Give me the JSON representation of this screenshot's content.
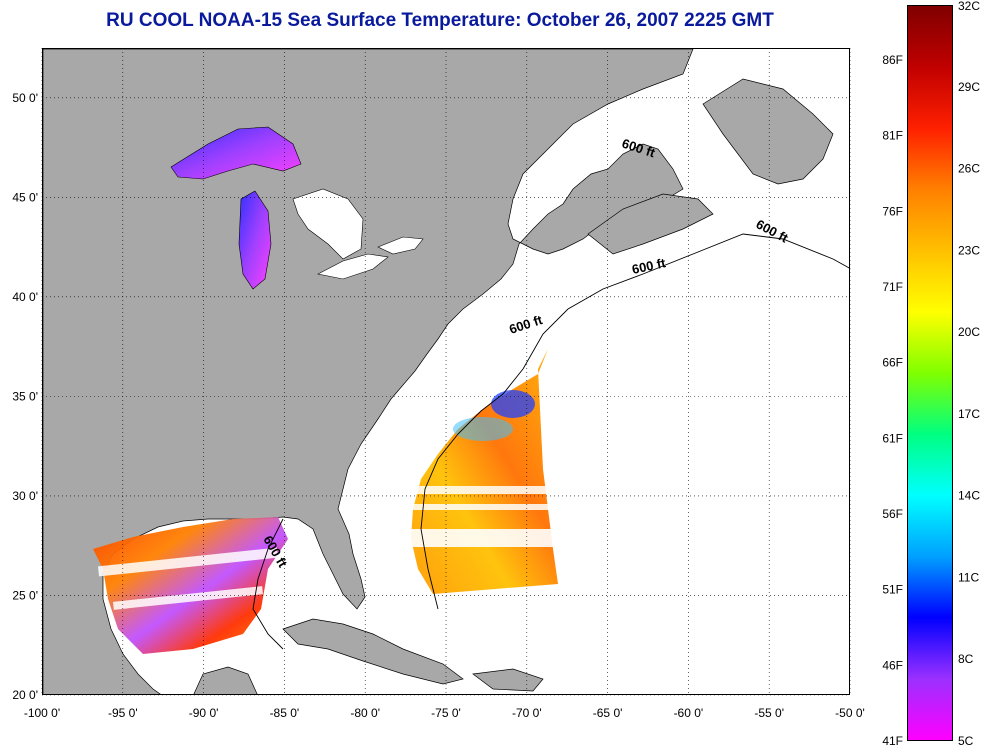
{
  "title": "RU COOL  NOAA-15  Sea Surface Temperature:  October 26, 2007 2225 GMT",
  "map": {
    "lon_range": [
      -100,
      -50
    ],
    "lat_range": [
      20,
      52.5
    ],
    "lon_ticks": [
      "-100 0'",
      "-95 0'",
      "-90 0'",
      "-85 0'",
      "-80 0'",
      "-75 0'",
      "-70 0'",
      "-65 0'",
      "-60 0'",
      "-55 0'",
      "-50 0'"
    ],
    "lat_ticks": [
      "20 0'",
      "25 0'",
      "30 0'",
      "35 0'",
      "40 0'",
      "45 0'",
      "50 0'"
    ],
    "contour_label": "600 ft",
    "land_color": "#a8a8a8",
    "ocean_color": "#ffffff",
    "grid": "dotted"
  },
  "colorbar": {
    "celsius_labels": [
      "32C",
      "29C",
      "26C",
      "23C",
      "20C",
      "17C",
      "14C",
      "11C",
      "8C",
      "5C"
    ],
    "fahrenheit_labels": [
      "86F",
      "81F",
      "76F",
      "71F",
      "66F",
      "61F",
      "56F",
      "51F",
      "46F",
      "41F"
    ],
    "colors": [
      "#ff00ff",
      "#9b30ff",
      "#0000ff",
      "#00a0ff",
      "#00ffff",
      "#00ff80",
      "#80ff00",
      "#ffff00",
      "#ffc000",
      "#ff8000",
      "#ff2000",
      "#c00000",
      "#800000"
    ]
  }
}
